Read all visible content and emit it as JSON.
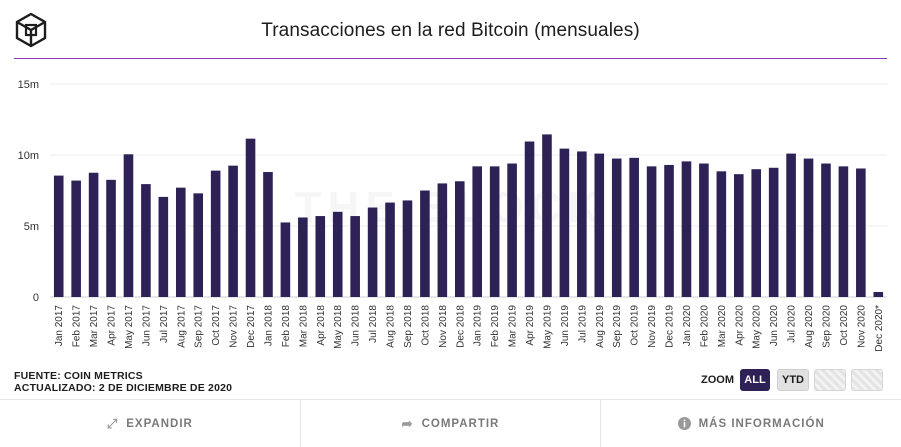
{
  "title": "Transacciones en la red Bitcoin (mensuales)",
  "watermark": "THE BLOCK",
  "source_line": "FUENTE: COIN METRICS",
  "updated_line": "ACTUALIZADO: 2 DE DICIEMBRE DE 2020",
  "zoom": {
    "label": "ZOOM",
    "all": "ALL",
    "ytd": "YTD"
  },
  "footer": {
    "expand": "EXPANDIR",
    "share": "COMPARTIR",
    "info": "MÁS INFORMACIÓN"
  },
  "colors": {
    "bar": "#2d2156",
    "accent": "#8e3bc4",
    "grid": "#ececec"
  },
  "chart_data": {
    "type": "bar",
    "title": "Transacciones en la red Bitcoin (mensuales)",
    "xlabel": "",
    "ylabel": "",
    "ylim": [
      0,
      15000000
    ],
    "yticks": [
      0,
      5000000,
      10000000,
      15000000
    ],
    "ytick_labels": [
      "0",
      "5m",
      "10m",
      "15m"
    ],
    "grid": true,
    "categories": [
      "Jan 2017",
      "Feb 2017",
      "Mar 2017",
      "Apr 2017",
      "May 2017",
      "Jun 2017",
      "Jul 2017",
      "Aug 2017",
      "Sep 2017",
      "Oct 2017",
      "Nov 2017",
      "Dec 2017",
      "Jan 2018",
      "Feb 2018",
      "Mar 2018",
      "Apr 2018",
      "May 2018",
      "Jun 2018",
      "Jul 2018",
      "Aug 2018",
      "Sep 2018",
      "Oct 2018",
      "Nov 2018",
      "Dec 2018",
      "Jan 2019",
      "Feb 2019",
      "Mar 2019",
      "Apr 2019",
      "May 2019",
      "Jun 2019",
      "Jul 2019",
      "Aug 2019",
      "Sep 2019",
      "Oct 2019",
      "Nov 2019",
      "Dec 2019",
      "Jan 2020",
      "Feb 2020",
      "Mar 2020",
      "Apr 2020",
      "May 2020",
      "Jun 2020",
      "Jul 2020",
      "Aug 2020",
      "Sep 2020",
      "Oct 2020",
      "Nov 2020",
      "Dec 2020*"
    ],
    "values": [
      8550000,
      8200000,
      8750000,
      8250000,
      10050000,
      7950000,
      7050000,
      7700000,
      7300000,
      8900000,
      9250000,
      11150000,
      8800000,
      5250000,
      5600000,
      5700000,
      6000000,
      5700000,
      6300000,
      6650000,
      6800000,
      7500000,
      8000000,
      8150000,
      9200000,
      9200000,
      9400000,
      10950000,
      11450000,
      10450000,
      10250000,
      10100000,
      9750000,
      9800000,
      9200000,
      9300000,
      9550000,
      9400000,
      8850000,
      8650000,
      9000000,
      9100000,
      10100000,
      9750000,
      9400000,
      9200000,
      9050000,
      350000
    ]
  }
}
